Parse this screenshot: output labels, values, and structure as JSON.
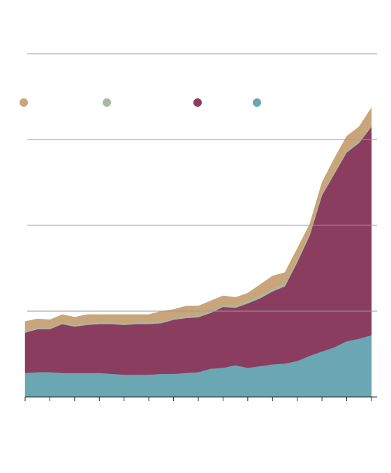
{
  "chart_data": {
    "type": "stacked_area",
    "x": [
      0,
      1,
      2,
      3,
      4,
      5,
      6,
      7,
      8,
      9,
      10,
      11,
      12,
      13,
      14,
      15,
      16,
      17,
      18,
      19,
      20,
      21,
      22,
      23,
      24,
      25,
      26,
      27,
      28
    ],
    "xlim": [
      0,
      28
    ],
    "xticks": [
      0,
      2,
      4,
      6,
      8,
      10,
      12,
      14,
      16,
      18,
      20,
      22,
      24,
      26,
      28
    ],
    "ylim": [
      0,
      4
    ],
    "yticks": [
      1,
      2,
      3,
      4
    ],
    "grid": true,
    "series": [
      {
        "color": "#6aa7b3",
        "values": [
          0.28,
          0.29,
          0.29,
          0.28,
          0.28,
          0.28,
          0.28,
          0.27,
          0.26,
          0.26,
          0.26,
          0.27,
          0.27,
          0.28,
          0.29,
          0.33,
          0.34,
          0.37,
          0.34,
          0.36,
          0.38,
          0.39,
          0.42,
          0.48,
          0.53,
          0.58,
          0.65,
          0.68,
          0.72
        ]
      },
      {
        "color": "#8b3d5f",
        "values": [
          0.47,
          0.5,
          0.5,
          0.57,
          0.54,
          0.56,
          0.57,
          0.58,
          0.58,
          0.59,
          0.59,
          0.59,
          0.63,
          0.64,
          0.64,
          0.65,
          0.71,
          0.67,
          0.75,
          0.79,
          0.85,
          0.9,
          1.15,
          1.4,
          1.82,
          2.02,
          2.2,
          2.28,
          2.43
        ]
      },
      {
        "color": "#a9b8a0",
        "values": [
          0.02,
          0.02,
          0.02,
          0.02,
          0.02,
          0.02,
          0.02,
          0.02,
          0.02,
          0.02,
          0.02,
          0.02,
          0.02,
          0.02,
          0.02,
          0.02,
          0.02,
          0.02,
          0.03,
          0.03,
          0.03,
          0.03,
          0.03,
          0.03,
          0.03,
          0.02,
          0.02,
          0.02,
          0.02
        ]
      },
      {
        "color": "#c8a57a",
        "values": [
          0.11,
          0.1,
          0.09,
          0.09,
          0.09,
          0.1,
          0.09,
          0.09,
          0.1,
          0.09,
          0.09,
          0.12,
          0.1,
          0.12,
          0.11,
          0.12,
          0.11,
          0.1,
          0.09,
          0.13,
          0.15,
          0.13,
          0.13,
          0.1,
          0.12,
          0.16,
          0.17,
          0.17,
          0.2
        ]
      }
    ]
  }
}
